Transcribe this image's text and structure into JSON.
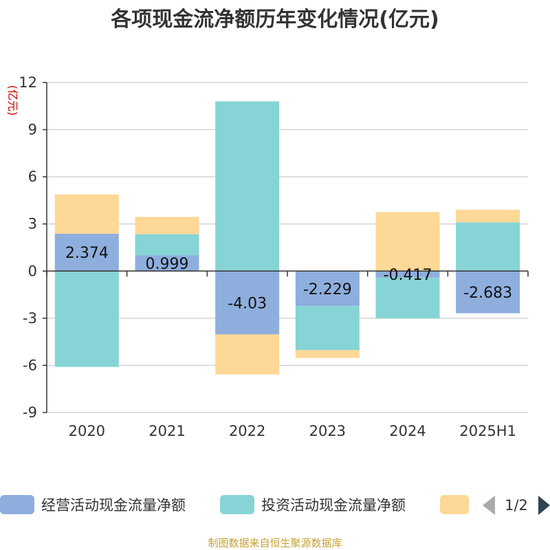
{
  "chart_data": {
    "type": "bar",
    "stacked": true,
    "title": "各项现金流净额历年变化情况(亿元)",
    "unit": "(亿元)",
    "categories": [
      "2020",
      "2021",
      "2022",
      "2023",
      "2024",
      "2025H1"
    ],
    "series": [
      {
        "name": "经营活动现金流量净额",
        "color": "#8eaedd",
        "values": [
          2.374,
          0.999,
          -4.03,
          -2.229,
          -0.417,
          -2.683
        ],
        "labels": [
          "2.374",
          "0.999",
          "-4.03",
          "-2.229",
          "-0.417",
          "-2.683"
        ]
      },
      {
        "name": "投资活动现金流量净额",
        "color": "#86d4d6",
        "values": [
          -6.1,
          1.35,
          10.8,
          -2.8,
          -2.6,
          3.1
        ]
      },
      {
        "color": "#fdd896",
        "values": [
          2.5,
          1.1,
          -2.55,
          -0.5,
          3.75,
          0.8
        ]
      }
    ],
    "ylim": [
      -9,
      12
    ],
    "yticks": [
      -9,
      -6,
      -3,
      0,
      3,
      6,
      9,
      12
    ],
    "grid": true,
    "legend_position": "bottom",
    "legend_page": "1/2",
    "source": "制图数据来自恒生聚源数据库"
  }
}
